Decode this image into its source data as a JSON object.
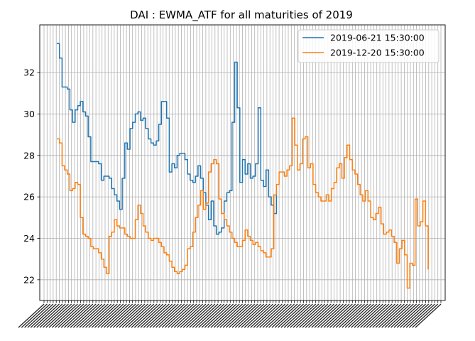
{
  "chart_data": {
    "type": "line",
    "title": "DAI : EWMA_ATF for all maturities of 2019",
    "xlabel": "",
    "ylabel": "",
    "ylim": [
      21,
      34.3
    ],
    "yticks": [
      22,
      24,
      26,
      28,
      30,
      32
    ],
    "grid": true,
    "legend_position": "upper right",
    "x_ticks_note": "dense, unreadable rotated date tick labels",
    "series": [
      {
        "name": "2019-06-21 15:30:00",
        "color": "#1f77b4",
        "points": [
          [
            0,
            33.4
          ],
          [
            1,
            32.7
          ],
          [
            2,
            31.3
          ],
          [
            4,
            31.2
          ],
          [
            5,
            30.2
          ],
          [
            6,
            29.6
          ],
          [
            7,
            30.2
          ],
          [
            8,
            30.4
          ],
          [
            9,
            30.6
          ],
          [
            10,
            30.1
          ],
          [
            11,
            29.9
          ],
          [
            12,
            28.9
          ],
          [
            13,
            27.7
          ],
          [
            14,
            27.7
          ],
          [
            16,
            27.6
          ],
          [
            17,
            26.8
          ],
          [
            18,
            27
          ],
          [
            20,
            26.9
          ],
          [
            21,
            26.4
          ],
          [
            22,
            26.1
          ],
          [
            23,
            25.8
          ],
          [
            24,
            25.4
          ],
          [
            25,
            26.9
          ],
          [
            26,
            28.6
          ],
          [
            27,
            28.3
          ],
          [
            28,
            29.3
          ],
          [
            29,
            29.6
          ],
          [
            30,
            30
          ],
          [
            31,
            30.1
          ],
          [
            32,
            29.7
          ],
          [
            33,
            29.8
          ],
          [
            34,
            29.3
          ],
          [
            35,
            28.8
          ],
          [
            36,
            28.6
          ],
          [
            37,
            28.5
          ],
          [
            38,
            28.7
          ],
          [
            39,
            29.5
          ],
          [
            40,
            30.6
          ],
          [
            41,
            30.6
          ],
          [
            42,
            29.8
          ],
          [
            43,
            27.2
          ],
          [
            44,
            27.6
          ],
          [
            45,
            27.4
          ],
          [
            46,
            28
          ],
          [
            47,
            28.1
          ],
          [
            48,
            28.1
          ],
          [
            49,
            27.8
          ],
          [
            50,
            27.1
          ],
          [
            51,
            26.8
          ],
          [
            52,
            26.7
          ],
          [
            53,
            27
          ],
          [
            54,
            27.5
          ],
          [
            55,
            26.9
          ],
          [
            56,
            26.2
          ],
          [
            57,
            25.6
          ],
          [
            58,
            24.9
          ],
          [
            59,
            25.8
          ],
          [
            60,
            24.6
          ],
          [
            61,
            24.2
          ],
          [
            62,
            24.3
          ],
          [
            63,
            24.5
          ],
          [
            64,
            25.8
          ],
          [
            65,
            26.2
          ],
          [
            66,
            26.3
          ],
          [
            67,
            29.6
          ],
          [
            68,
            32.5
          ],
          [
            69,
            30.3
          ],
          [
            70,
            26.7
          ],
          [
            71,
            27.8
          ],
          [
            72,
            27.1
          ],
          [
            73,
            27.6
          ],
          [
            74,
            26.9
          ],
          [
            75,
            27
          ],
          [
            76,
            27.6
          ],
          [
            77,
            30.3
          ],
          [
            78,
            26.8
          ],
          [
            79,
            26.5
          ],
          [
            80,
            27.3
          ],
          [
            81,
            26
          ],
          [
            82,
            25.6
          ],
          [
            83,
            25.2
          ],
          [
            84,
            26.3
          ]
        ]
      },
      {
        "name": "2019-12-20 15:30:00",
        "color": "#ff7f0e",
        "points": [
          [
            0,
            28.8
          ],
          [
            1,
            28.6
          ],
          [
            2,
            27.5
          ],
          [
            3,
            27.3
          ],
          [
            4,
            27.1
          ],
          [
            5,
            26.3
          ],
          [
            6,
            26.4
          ],
          [
            7,
            26.7
          ],
          [
            8,
            26.6
          ],
          [
            9,
            25
          ],
          [
            10,
            24.2
          ],
          [
            11,
            24.1
          ],
          [
            12,
            24
          ],
          [
            13,
            23.6
          ],
          [
            14,
            23.5
          ],
          [
            15,
            23.5
          ],
          [
            16,
            23.3
          ],
          [
            17,
            23
          ],
          [
            18,
            22.6
          ],
          [
            19,
            22.3
          ],
          [
            20,
            24.1
          ],
          [
            21,
            24.3
          ],
          [
            22,
            24.9
          ],
          [
            23,
            24.6
          ],
          [
            24,
            24.5
          ],
          [
            25,
            24.5
          ],
          [
            26,
            24.2
          ],
          [
            27,
            24.1
          ],
          [
            28,
            24
          ],
          [
            29,
            24
          ],
          [
            30,
            24.9
          ],
          [
            31,
            25.6
          ],
          [
            32,
            25.2
          ],
          [
            33,
            24.6
          ],
          [
            34,
            24.3
          ],
          [
            35,
            24
          ],
          [
            36,
            23.9
          ],
          [
            37,
            24
          ],
          [
            38,
            24
          ],
          [
            39,
            23.8
          ],
          [
            40,
            23.6
          ],
          [
            41,
            23.3
          ],
          [
            42,
            23.2
          ],
          [
            43,
            22.9
          ],
          [
            44,
            22.6
          ],
          [
            45,
            22.4
          ],
          [
            46,
            22.3
          ],
          [
            47,
            22.4
          ],
          [
            48,
            22.5
          ],
          [
            49,
            22.7
          ],
          [
            50,
            23.5
          ],
          [
            51,
            23.6
          ],
          [
            52,
            24.3
          ],
          [
            53,
            25
          ],
          [
            54,
            25.6
          ],
          [
            55,
            26.3
          ],
          [
            56,
            25.4
          ],
          [
            57,
            25.7
          ],
          [
            58,
            27.2
          ],
          [
            59,
            27.6
          ],
          [
            60,
            27.8
          ],
          [
            61,
            27.6
          ],
          [
            62,
            25.9
          ],
          [
            63,
            25.2
          ],
          [
            64,
            24.9
          ],
          [
            65,
            24.6
          ],
          [
            66,
            24.3
          ],
          [
            67,
            24
          ],
          [
            68,
            23.8
          ],
          [
            69,
            23.6
          ],
          [
            70,
            23.6
          ],
          [
            71,
            23.9
          ],
          [
            72,
            24.4
          ],
          [
            73,
            24.1
          ],
          [
            74,
            23.9
          ],
          [
            75,
            23.7
          ],
          [
            76,
            23.8
          ],
          [
            77,
            23.6
          ],
          [
            78,
            23.4
          ],
          [
            79,
            23.3
          ],
          [
            80,
            23.1
          ],
          [
            81,
            23.1
          ],
          [
            82,
            23.5
          ],
          [
            83,
            26.1
          ],
          [
            84,
            26.6
          ],
          [
            85,
            27.2
          ],
          [
            86,
            27.2
          ],
          [
            87,
            27
          ],
          [
            88,
            27.3
          ],
          [
            89,
            27.5
          ],
          [
            90,
            29.8
          ],
          [
            91,
            28.5
          ],
          [
            92,
            27.3
          ],
          [
            93,
            27.6
          ],
          [
            94,
            28.8
          ],
          [
            95,
            28.9
          ],
          [
            96,
            27.4
          ],
          [
            97,
            27.6
          ],
          [
            98,
            26.6
          ],
          [
            99,
            26.2
          ],
          [
            100,
            26
          ],
          [
            101,
            25.8
          ],
          [
            102,
            25.8
          ],
          [
            103,
            26.1
          ],
          [
            104,
            25.8
          ],
          [
            105,
            26.4
          ],
          [
            106,
            26.7
          ],
          [
            107,
            27.4
          ],
          [
            108,
            27.6
          ],
          [
            109,
            26.9
          ],
          [
            110,
            27.9
          ],
          [
            111,
            28.5
          ],
          [
            112,
            27.8
          ],
          [
            113,
            27.3
          ],
          [
            114,
            27.1
          ],
          [
            115,
            26.6
          ],
          [
            116,
            26.1
          ],
          [
            117,
            25.8
          ],
          [
            118,
            26.3
          ],
          [
            119,
            25.8
          ],
          [
            120,
            25
          ],
          [
            121,
            24.9
          ],
          [
            122,
            25.2
          ],
          [
            123,
            25.5
          ],
          [
            124,
            24.7
          ],
          [
            125,
            24.2
          ],
          [
            126,
            24.3
          ],
          [
            127,
            24.4
          ],
          [
            128,
            24.1
          ],
          [
            129,
            23.8
          ],
          [
            130,
            22.8
          ],
          [
            131,
            23.5
          ],
          [
            132,
            23.9
          ],
          [
            133,
            23.2
          ],
          [
            134,
            21.6
          ],
          [
            135,
            22.8
          ],
          [
            136,
            22.7
          ],
          [
            137,
            25.9
          ],
          [
            138,
            24.6
          ],
          [
            139,
            24.8
          ],
          [
            140,
            25.8
          ],
          [
            141,
            24.6
          ],
          [
            142,
            22.5
          ]
        ]
      }
    ],
    "legend": [
      "2019-06-21 15:30:00",
      "2019-12-20 15:30:00"
    ]
  }
}
